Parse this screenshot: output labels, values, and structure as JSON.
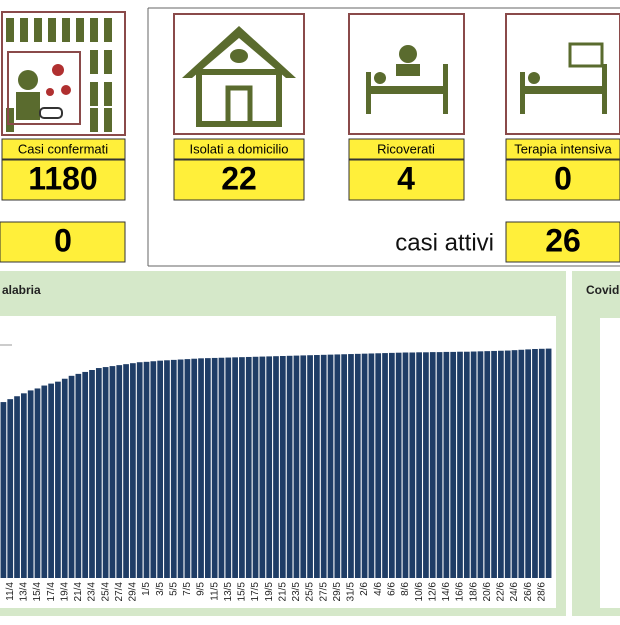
{
  "cards": [
    {
      "label": "Casi confermati",
      "value": 1180
    },
    {
      "label": "Isolati a domicilio",
      "value": 22
    },
    {
      "label": "Ricoverati",
      "value": 4
    },
    {
      "label": "Terapia intensiva",
      "value": 0
    }
  ],
  "extra": {
    "value": 0
  },
  "active": {
    "label": "casi attivi",
    "value": 26
  },
  "side_title": "Covid",
  "chart_data": {
    "type": "bar",
    "title": "alabria",
    "color": "#1f3d66",
    "categories": [
      null,
      "11/4",
      null,
      "13/4",
      null,
      "15/4",
      null,
      "17/4",
      null,
      "19/4",
      null,
      "21/4",
      null,
      "23/4",
      null,
      "25/4",
      null,
      "27/4",
      null,
      "29/4",
      null,
      "1/5",
      null,
      "3/5",
      null,
      "5/5",
      null,
      "7/5",
      null,
      "9/5",
      null,
      "11/5",
      null,
      "13/5",
      null,
      "15/5",
      null,
      "17/5",
      null,
      "19/5",
      null,
      "21/5",
      null,
      "23/5",
      null,
      "25/5",
      null,
      "27/5",
      null,
      "29/5",
      null,
      "31/5",
      null,
      "2/6",
      null,
      "4/6",
      null,
      "6/6",
      null,
      "8/6",
      null,
      "10/6",
      null,
      "12/6",
      null,
      "14/6",
      null,
      "16/6",
      null,
      "18/6",
      null,
      "20/6",
      null,
      "22/6",
      null,
      "24/6",
      null,
      "26/6",
      null,
      "28/6",
      null
    ],
    "values": [
      905,
      920,
      935,
      950,
      965,
      975,
      990,
      1000,
      1010,
      1025,
      1040,
      1050,
      1060,
      1070,
      1080,
      1085,
      1090,
      1095,
      1100,
      1105,
      1110,
      1112,
      1115,
      1118,
      1120,
      1122,
      1124,
      1126,
      1128,
      1130,
      1131,
      1132,
      1133,
      1134,
      1135,
      1136,
      1137,
      1138,
      1139,
      1140,
      1141,
      1142,
      1143,
      1144,
      1145,
      1146,
      1147,
      1148,
      1149,
      1150,
      1151,
      1152,
      1153,
      1154,
      1155,
      1156,
      1157,
      1158,
      1159,
      1160,
      1160,
      1161,
      1161,
      1162,
      1162,
      1163,
      1163,
      1164,
      1164,
      1165,
      1166,
      1167,
      1168,
      1169,
      1170,
      1172,
      1174,
      1176,
      1178,
      1179,
      1180
    ],
    "ylim": [
      0,
      1250
    ]
  }
}
